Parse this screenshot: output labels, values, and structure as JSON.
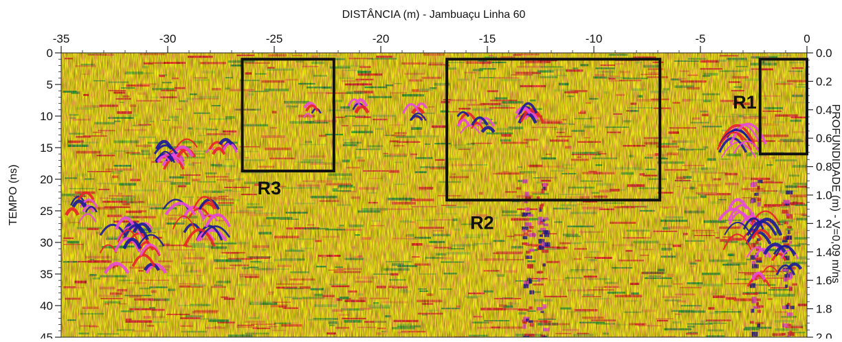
{
  "chart_data": {
    "type": "heatmap",
    "title": "DISTÂNCIA (m) - Jambuaçu Linha 60",
    "left_axis_label": "TEMPO (ns)",
    "right_axis_label": "PROFUNDIDADE (m) - V=0,09 m/ns",
    "x_range": [
      -35,
      0
    ],
    "x_ticks": [
      -35,
      -30,
      -25,
      -20,
      -15,
      -10,
      -5,
      0
    ],
    "y_left_range": [
      0,
      45
    ],
    "y_left_ticks": [
      0,
      5,
      10,
      15,
      20,
      25,
      30,
      35,
      40,
      45
    ],
    "y_right_range": [
      0.0,
      2.0
    ],
    "y_right_ticks": [
      "0.0",
      "0.2",
      "0.4",
      "0.6",
      "0.8",
      "1.0",
      "1.2",
      "1.4",
      "1.6",
      "1.8",
      "2.0"
    ],
    "colors": [
      "#f2ee1a",
      "#22a03a",
      "#e8242a",
      "#e84ad8",
      "#1a1a9a",
      "#9cd23a",
      "#f28c3a"
    ],
    "regions": [
      {
        "label": "R1",
        "x0": -2.2,
        "x1": 0,
        "t0": 1,
        "t1": 16
      },
      {
        "label": "R2",
        "x0": -16.9,
        "x1": -6.9,
        "t0": 1,
        "t1": 23.3
      },
      {
        "label": "R3",
        "x0": -26.5,
        "x1": -22.2,
        "t0": 1,
        "t1": 18.7
      }
    ]
  }
}
